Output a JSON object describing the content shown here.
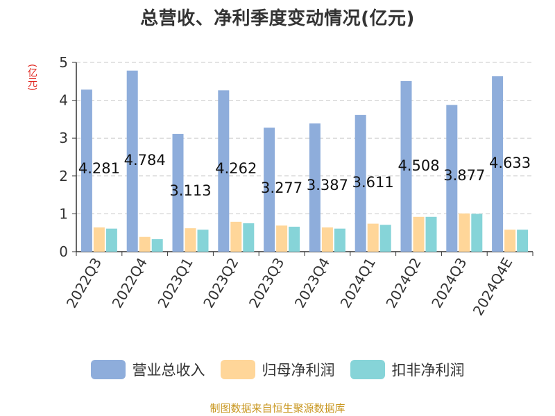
{
  "chart_data": {
    "type": "bar",
    "title": "总营收、净利季度变动情况(亿元)",
    "ylabel": "(亿元)",
    "xlabel": "",
    "ylim": [
      0,
      5
    ],
    "yticks": [
      0,
      1,
      2,
      3,
      4,
      5
    ],
    "grid": true,
    "legend_position": "bottom",
    "categories": [
      "2022Q3",
      "2022Q4",
      "2023Q1",
      "2023Q2",
      "2023Q3",
      "2023Q4",
      "2024Q1",
      "2024Q2",
      "2024Q3",
      "2024Q4E"
    ],
    "series": [
      {
        "name": "营业总收入",
        "color": "#8eaddb",
        "values": [
          4.281,
          4.784,
          3.113,
          4.262,
          3.277,
          3.387,
          3.611,
          4.508,
          3.877,
          4.633
        ],
        "labels": [
          "4.281",
          "4.784",
          "3.113",
          "4.262",
          "3.277",
          "3.387",
          "3.611",
          "4.508",
          "3.877",
          "4.633"
        ]
      },
      {
        "name": "归母净利润",
        "color": "#ffd699",
        "values": [
          0.64,
          0.39,
          0.62,
          0.79,
          0.69,
          0.64,
          0.74,
          0.92,
          1.01,
          0.58
        ]
      },
      {
        "name": "扣非净利润",
        "color": "#86d4d8",
        "values": [
          0.61,
          0.33,
          0.58,
          0.75,
          0.66,
          0.61,
          0.71,
          0.92,
          1.0,
          0.58
        ]
      }
    ]
  },
  "source": "制图数据来自恒生聚源数据库"
}
